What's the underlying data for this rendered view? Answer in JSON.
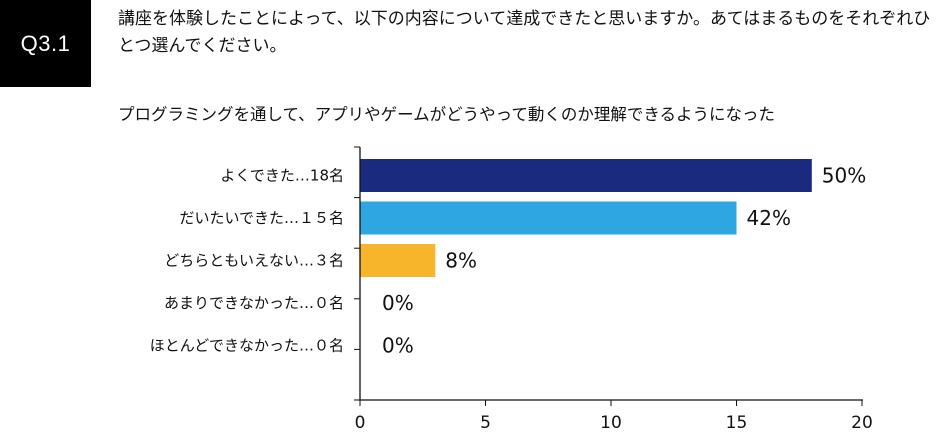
{
  "header": {
    "badge": "Q3.1",
    "question": "講座を体験したことによって、以下の内容について達成できたと思いますか。あてはまるものをそれぞれひとつ選んでください。"
  },
  "chart_data": {
    "type": "bar",
    "orientation": "horizontal",
    "title": "プログラミングを通して、アプリやゲームがどうやって動くのか理解できるようになった",
    "categories": [
      "よくできた…18名",
      "だいたいできた…１５名",
      "どちらともいえない…３名",
      "あまりできなかった…０名",
      "ほとんどできなかった…０名"
    ],
    "values": [
      18,
      15,
      3,
      0,
      0
    ],
    "data_labels": [
      "50%",
      "42%",
      "8%",
      "0%",
      "0%"
    ],
    "colors": [
      "#1a2a7e",
      "#2ea6df",
      "#f7b52c",
      "#cccccc",
      "#cccccc"
    ],
    "xlim": [
      0,
      20
    ],
    "xticks": [
      "0",
      "5",
      "10",
      "15",
      "20"
    ],
    "grid": false,
    "legend": "none"
  }
}
